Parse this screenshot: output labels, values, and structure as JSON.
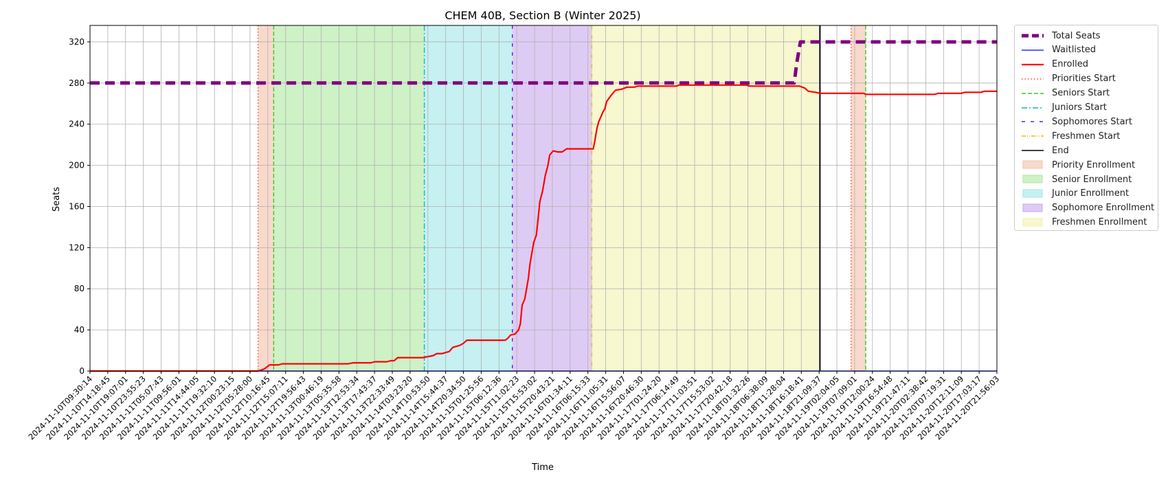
{
  "chart_data": {
    "type": "line",
    "title": "CHEM 40B, Section B (Winter 2025)",
    "xlabel": "Time",
    "ylabel": "Seats",
    "ylim": [
      0,
      336
    ],
    "yticks": [
      0,
      40,
      80,
      120,
      160,
      200,
      240,
      280,
      320
    ],
    "grid": true,
    "legend_placement": "outside-right",
    "x_tick_labels": [
      "2024-11-10T09:30:14",
      "2024-11-10T14:18:45",
      "2024-11-10T19:07:01",
      "2024-11-10T23:55:23",
      "2024-11-11T05:07:43",
      "2024-11-11T09:56:01",
      "2024-11-11T14:44:05",
      "2024-11-11T19:32:10",
      "2024-11-12T00:23:15",
      "2024-11-12T05:28:00",
      "2024-11-12T10:16:45",
      "2024-11-12T15:07:11",
      "2024-11-12T19:56:43",
      "2024-11-13T00:46:19",
      "2024-11-13T05:35:58",
      "2024-11-13T12:53:34",
      "2024-11-13T17:43:37",
      "2024-11-13T22:33:49",
      "2024-11-14T03:23:20",
      "2024-11-14T10:53:50",
      "2024-11-14T15:44:37",
      "2024-11-14T20:34:50",
      "2024-11-15T01:25:56",
      "2024-11-15T06:12:36",
      "2024-11-15T11:02:23",
      "2024-11-15T15:53:02",
      "2024-11-15T20:43:21",
      "2024-11-16T01:34:11",
      "2024-11-16T06:15:33",
      "2024-11-16T11:05:31",
      "2024-11-16T15:56:07",
      "2024-11-16T20:46:30",
      "2024-11-17T01:24:20",
      "2024-11-17T06:14:49",
      "2024-11-17T11:03:51",
      "2024-11-17T15:53:02",
      "2024-11-17T20:42:18",
      "2024-11-18T01:32:26",
      "2024-11-18T06:38:09",
      "2024-11-18T11:28:04",
      "2024-11-18T16:18:41",
      "2024-11-18T21:09:37",
      "2024-11-19T02:04:05",
      "2024-11-19T07:09:01",
      "2024-11-19T12:00:24",
      "2024-11-19T16:54:48",
      "2024-11-19T21:47:11",
      "2024-11-20T02:38:42",
      "2024-11-20T07:19:31",
      "2024-11-20T12:11:09",
      "2024-11-20T17:03:17",
      "2024-11-20T21:56:03"
    ],
    "phases": [
      {
        "name": "Priority Enrollment",
        "start_tick": 9.45,
        "end_tick": 10.33,
        "color": "#f4c0a8"
      },
      {
        "name": "Senior Enrollment",
        "start_tick": 10.33,
        "end_tick": 18.8,
        "color": "#aee8a0"
      },
      {
        "name": "Junior Enrollment",
        "start_tick": 18.8,
        "end_tick": 23.75,
        "color": "#a0e6ea"
      },
      {
        "name": "Sophomore Enrollment",
        "start_tick": 23.75,
        "end_tick": 28.22,
        "color": "#c8a8ec"
      },
      {
        "name": "Freshmen Enrollment",
        "start_tick": 28.22,
        "end_tick": 40.95,
        "color": "#f2f2b0"
      },
      {
        "name": "Priority Enrollment",
        "start_tick": 42.8,
        "end_tick": 43.62,
        "color": "#f4c0a8"
      }
    ],
    "vlines": [
      {
        "name": "Priorities Start",
        "tick": 9.45,
        "color": "#ff4422",
        "style": "dotted"
      },
      {
        "name": "Seniors Start",
        "tick": 10.33,
        "color": "#33cc22",
        "style": "dashed"
      },
      {
        "name": "Juniors Start",
        "tick": 18.8,
        "color": "#11bbbb",
        "style": "dashdot"
      },
      {
        "name": "Sophomores Start",
        "tick": 23.75,
        "color": "#5522dd",
        "style": "loosedash"
      },
      {
        "name": "Freshmen Start",
        "tick": 28.22,
        "color": "#e8c000",
        "style": "dashdotdot"
      },
      {
        "name": "End",
        "tick": 41.05,
        "color": "#000000",
        "style": "solid"
      },
      {
        "name": "Priorities Start",
        "tick": 42.8,
        "color": "#ff4422",
        "style": "dotted"
      },
      {
        "name": "Seniors Start",
        "tick": 43.62,
        "color": "#33cc22",
        "style": "dashed"
      }
    ],
    "series": [
      {
        "name": "Total Seats",
        "color": "#800080",
        "points": [
          [
            0,
            280
          ],
          [
            39.6,
            280
          ],
          [
            39.75,
            300
          ],
          [
            39.95,
            320
          ],
          [
            51,
            320
          ]
        ]
      },
      {
        "name": "Waitlisted",
        "color": "#2233ff",
        "points": [
          [
            0,
            0
          ],
          [
            51,
            0
          ]
        ]
      },
      {
        "name": "Enrolled",
        "color": "#ff0000",
        "points": [
          [
            0,
            0
          ],
          [
            9.45,
            0
          ],
          [
            9.8,
            2
          ],
          [
            10.1,
            6
          ],
          [
            10.6,
            6
          ],
          [
            10.8,
            7
          ],
          [
            12,
            7
          ],
          [
            14.5,
            7
          ],
          [
            14.8,
            8
          ],
          [
            15.8,
            8
          ],
          [
            16,
            9
          ],
          [
            16.7,
            9
          ],
          [
            16.9,
            10
          ],
          [
            17.1,
            10
          ],
          [
            17.3,
            13
          ],
          [
            18.7,
            13
          ],
          [
            19.0,
            14
          ],
          [
            19.3,
            15
          ],
          [
            19.5,
            17
          ],
          [
            19.8,
            17
          ],
          [
            20,
            18
          ],
          [
            20.2,
            19
          ],
          [
            20.4,
            23
          ],
          [
            20.6,
            24
          ],
          [
            20.8,
            25
          ],
          [
            21.0,
            27
          ],
          [
            21.2,
            30
          ],
          [
            23.35,
            30
          ],
          [
            23.5,
            32
          ],
          [
            23.65,
            35
          ],
          [
            23.9,
            36
          ],
          [
            24.1,
            40
          ],
          [
            24.2,
            46
          ],
          [
            24.3,
            64
          ],
          [
            24.45,
            70
          ],
          [
            24.55,
            80
          ],
          [
            24.65,
            90
          ],
          [
            24.75,
            105
          ],
          [
            24.85,
            115
          ],
          [
            24.95,
            125
          ],
          [
            25.1,
            132
          ],
          [
            25.2,
            148
          ],
          [
            25.3,
            165
          ],
          [
            25.45,
            175
          ],
          [
            25.6,
            190
          ],
          [
            25.75,
            200
          ],
          [
            25.85,
            210
          ],
          [
            26.05,
            214
          ],
          [
            26.3,
            213
          ],
          [
            26.55,
            213
          ],
          [
            26.8,
            216
          ],
          [
            28.3,
            216
          ],
          [
            28.4,
            225
          ],
          [
            28.5,
            235
          ],
          [
            28.6,
            242
          ],
          [
            28.75,
            248
          ],
          [
            28.85,
            252
          ],
          [
            28.95,
            255
          ],
          [
            29.05,
            262
          ],
          [
            29.3,
            268
          ],
          [
            29.55,
            273
          ],
          [
            29.9,
            274
          ],
          [
            30.2,
            276
          ],
          [
            30.6,
            276
          ],
          [
            30.8,
            277
          ],
          [
            32,
            277
          ],
          [
            33,
            277
          ],
          [
            33.1,
            278
          ],
          [
            35,
            278
          ],
          [
            36.9,
            278
          ],
          [
            37.1,
            277
          ],
          [
            39.9,
            277
          ],
          [
            40.2,
            275
          ],
          [
            40.4,
            272
          ],
          [
            40.8,
            271
          ],
          [
            41.05,
            270
          ],
          [
            43.5,
            270
          ],
          [
            43.65,
            269
          ],
          [
            45,
            269
          ],
          [
            47.5,
            269
          ],
          [
            47.7,
            270
          ],
          [
            48.5,
            270
          ],
          [
            49,
            270
          ],
          [
            49.2,
            271
          ],
          [
            50.1,
            271
          ],
          [
            50.3,
            272
          ],
          [
            51,
            272
          ]
        ]
      }
    ],
    "legend": [
      {
        "label": "Total Seats",
        "kind": "line",
        "color": "#800080",
        "style": "thickdash"
      },
      {
        "label": "Waitlisted",
        "kind": "line",
        "color": "#2233ff",
        "style": "solid"
      },
      {
        "label": "Enrolled",
        "kind": "line",
        "color": "#ff0000",
        "style": "solid"
      },
      {
        "label": "Priorities Start",
        "kind": "line",
        "color": "#ff4422",
        "style": "dotted"
      },
      {
        "label": "Seniors Start",
        "kind": "line",
        "color": "#33cc22",
        "style": "dashed"
      },
      {
        "label": "Juniors Start",
        "kind": "line",
        "color": "#11bbbb",
        "style": "dashdot"
      },
      {
        "label": "Sophomores Start",
        "kind": "line",
        "color": "#5522dd",
        "style": "loosedash"
      },
      {
        "label": "Freshmen Start",
        "kind": "line",
        "color": "#e8c000",
        "style": "dashdotdot"
      },
      {
        "label": "End",
        "kind": "line",
        "color": "#000000",
        "style": "solid"
      },
      {
        "label": "Priority Enrollment",
        "kind": "patch",
        "color": "#f4c0a8"
      },
      {
        "label": "Senior Enrollment",
        "kind": "patch",
        "color": "#aee8a0"
      },
      {
        "label": "Junior Enrollment",
        "kind": "patch",
        "color": "#a0e6ea"
      },
      {
        "label": "Sophomore Enrollment",
        "kind": "patch",
        "color": "#c8a8ec"
      },
      {
        "label": "Freshmen Enrollment",
        "kind": "patch",
        "color": "#f2f2b0"
      }
    ]
  }
}
